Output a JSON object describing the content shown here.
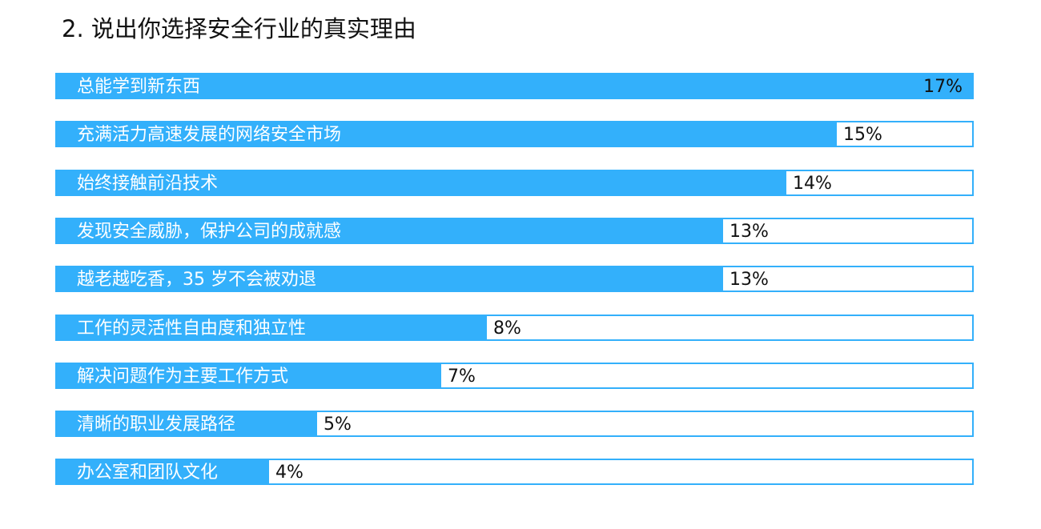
{
  "chart_data": {
    "type": "bar",
    "orientation": "horizontal",
    "title": "2. 说出你选择安全行业的真实理由",
    "colors": {
      "bar": "#33b0fb",
      "track": "#ffffff",
      "value_text": "#111111",
      "label_text": "#ffffff"
    },
    "xlim": [
      0,
      17
    ],
    "categories": [
      "总能学到新东西",
      "充满活力高速发展的网络安全市场",
      "始终接触前沿技术",
      "发现安全威胁，保护公司的成就感",
      "越老越吃香，35 岁不会被劝退",
      "工作的灵活性自由度和独立性",
      "解决问题作为主要工作方式",
      "清晰的职业发展路径",
      "办公室和团队文化"
    ],
    "values": [
      17,
      15,
      14,
      13,
      13,
      8,
      7,
      5,
      4
    ],
    "value_labels": [
      "17%",
      "15%",
      "14%",
      "13%",
      "13%",
      "8%",
      "7%",
      "5%",
      "4%"
    ],
    "fill_fractions": [
      1.0,
      0.852,
      0.797,
      0.728,
      0.728,
      0.47,
      0.42,
      0.284,
      0.232
    ]
  }
}
